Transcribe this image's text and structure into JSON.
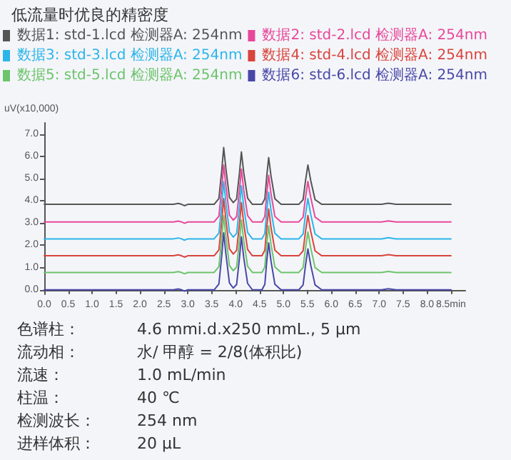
{
  "chart_data": {
    "type": "line",
    "title": "低流量时优良的精密度",
    "ylabel": "uV(x10,000)",
    "x": [
      0,
      2.7,
      2.8,
      2.87,
      2.93,
      3.0,
      3.55,
      3.65,
      3.71,
      3.75,
      3.8,
      3.87,
      3.95,
      4.02,
      4.08,
      4.12,
      4.17,
      4.25,
      4.35,
      4.55,
      4.61,
      4.65,
      4.69,
      4.74,
      4.82,
      4.95,
      5.32,
      5.41,
      5.46,
      5.51,
      5.57,
      5.66,
      5.8,
      7.05,
      7.19,
      7.35,
      8.5
    ],
    "series": [
      {
        "name": "数据1: std-1.lcd 检测器A: 254nm",
        "color": "#555555",
        "values": [
          3.84,
          3.84,
          3.88,
          3.84,
          3.78,
          3.84,
          3.84,
          4.1,
          5.37,
          6.39,
          5.37,
          4.15,
          3.92,
          4.08,
          5.25,
          6.19,
          5.25,
          4.12,
          3.84,
          3.84,
          4.09,
          5.1,
          5.94,
          5.1,
          4.09,
          3.84,
          3.84,
          4.05,
          4.9,
          5.61,
          4.9,
          4.05,
          3.84,
          3.84,
          3.89,
          3.84,
          3.84
        ]
      },
      {
        "name": "数据2: std-2.lcd 检测器A: 254nm",
        "color": "#e8489a",
        "values": [
          3.05,
          3.05,
          3.09,
          3.05,
          2.99,
          3.05,
          3.05,
          3.31,
          4.59,
          5.61,
          4.59,
          3.36,
          3.13,
          3.29,
          4.47,
          5.42,
          4.47,
          3.33,
          3.05,
          3.05,
          3.3,
          4.3,
          5.14,
          4.3,
          3.3,
          3.05,
          3.05,
          3.27,
          4.14,
          4.87,
          4.14,
          3.27,
          3.05,
          3.05,
          3.1,
          3.05,
          3.05
        ]
      },
      {
        "name": "数据3: std-3.lcd 检测器A: 254nm",
        "color": "#2bb5ea",
        "values": [
          2.29,
          2.29,
          2.33,
          2.29,
          2.23,
          2.29,
          2.29,
          2.55,
          3.83,
          4.86,
          3.83,
          2.6,
          2.37,
          2.53,
          3.72,
          4.68,
          3.72,
          2.58,
          2.29,
          2.29,
          2.54,
          3.55,
          4.39,
          3.55,
          2.54,
          2.29,
          2.29,
          2.51,
          3.38,
          4.1,
          3.38,
          2.51,
          2.29,
          2.29,
          2.34,
          2.29,
          2.29
        ]
      },
      {
        "name": "数据4: std-4.lcd 检测器A: 254nm",
        "color": "#d9443c",
        "values": [
          1.53,
          1.53,
          1.57,
          1.53,
          1.47,
          1.53,
          1.53,
          1.79,
          3.07,
          4.1,
          3.07,
          1.84,
          1.61,
          1.77,
          2.96,
          3.92,
          2.96,
          1.82,
          1.53,
          1.53,
          1.78,
          2.79,
          3.63,
          2.79,
          1.78,
          1.53,
          1.53,
          1.75,
          2.62,
          3.34,
          2.62,
          1.75,
          1.53,
          1.53,
          1.58,
          1.53,
          1.53
        ]
      },
      {
        "name": "数据5: std-5.lcd 检测器A: 254nm",
        "color": "#6cc46b",
        "values": [
          0.78,
          0.78,
          0.82,
          0.78,
          0.72,
          0.78,
          0.78,
          1.04,
          2.32,
          3.34,
          2.32,
          1.09,
          0.86,
          1.02,
          2.2,
          3.14,
          2.2,
          1.06,
          0.78,
          0.78,
          1.03,
          2.03,
          2.87,
          2.03,
          1.03,
          0.78,
          0.78,
          1.0,
          1.87,
          2.6,
          1.87,
          1.0,
          0.78,
          0.78,
          0.83,
          0.78,
          0.78
        ]
      },
      {
        "name": "数据6: std-6.lcd 检测器A: 254nm",
        "color": "#4848a8",
        "values": [
          0,
          0,
          0.04,
          0,
          -0.06,
          0,
          0,
          0.26,
          1.54,
          2.56,
          1.54,
          0.31,
          0.08,
          0.24,
          1.43,
          2.38,
          1.43,
          0.29,
          0,
          0,
          0.25,
          1.27,
          2.11,
          1.27,
          0.25,
          0,
          0,
          0.22,
          1.1,
          1.84,
          1.1,
          0.22,
          0,
          0,
          0.05,
          0,
          0
        ]
      }
    ],
    "xlim": [
      0,
      8.8
    ],
    "ylim": [
      -0.2,
      7.5
    ],
    "xticks": [
      {
        "value": 0,
        "label": "0.0"
      },
      {
        "value": 0.5,
        "label": "0.5"
      },
      {
        "value": 1,
        "label": "1.0"
      },
      {
        "value": 1.5,
        "label": "1.5"
      },
      {
        "value": 2,
        "label": "2.0"
      },
      {
        "value": 2.5,
        "label": "2.5"
      },
      {
        "value": 3,
        "label": "3.0"
      },
      {
        "value": 3.5,
        "label": "3.5"
      },
      {
        "value": 4,
        "label": "4.0"
      },
      {
        "value": 4.5,
        "label": "4.5"
      },
      {
        "value": 5,
        "label": "5.0"
      },
      {
        "value": 5.5,
        "label": "5.5"
      },
      {
        "value": 6,
        "label": "6.0"
      },
      {
        "value": 6.5,
        "label": "6.5"
      },
      {
        "value": 7,
        "label": "7.0"
      },
      {
        "value": 7.5,
        "label": "7.5"
      },
      {
        "value": 8,
        "label": "8.0"
      },
      {
        "value": 8.5,
        "label": "8.5min"
      }
    ],
    "yticks": [
      {
        "value": 0,
        "label": "0.0"
      },
      {
        "value": 1,
        "label": "1.0"
      },
      {
        "value": 2,
        "label": "2.0"
      },
      {
        "value": 3,
        "label": "3.0"
      },
      {
        "value": 4,
        "label": "4.0"
      },
      {
        "value": 5,
        "label": "5.0"
      },
      {
        "value": 6,
        "label": "6.0"
      },
      {
        "value": 7,
        "label": "7.0"
      }
    ],
    "grid": false,
    "legend": "top",
    "marker": "none",
    "line_style": "solid",
    "annotations": [
      "色谱柱：",
      "4.6 mmi.d.x250 mmL., 5 µm",
      "流动相：",
      "水/ 甲醇 = 2/8(体积比)",
      "流速：",
      "1.0 mL/min",
      "柱温：",
      "40 ℃",
      "检测波长：",
      "254 nm",
      "进样体积：",
      "20 µL"
    ]
  }
}
